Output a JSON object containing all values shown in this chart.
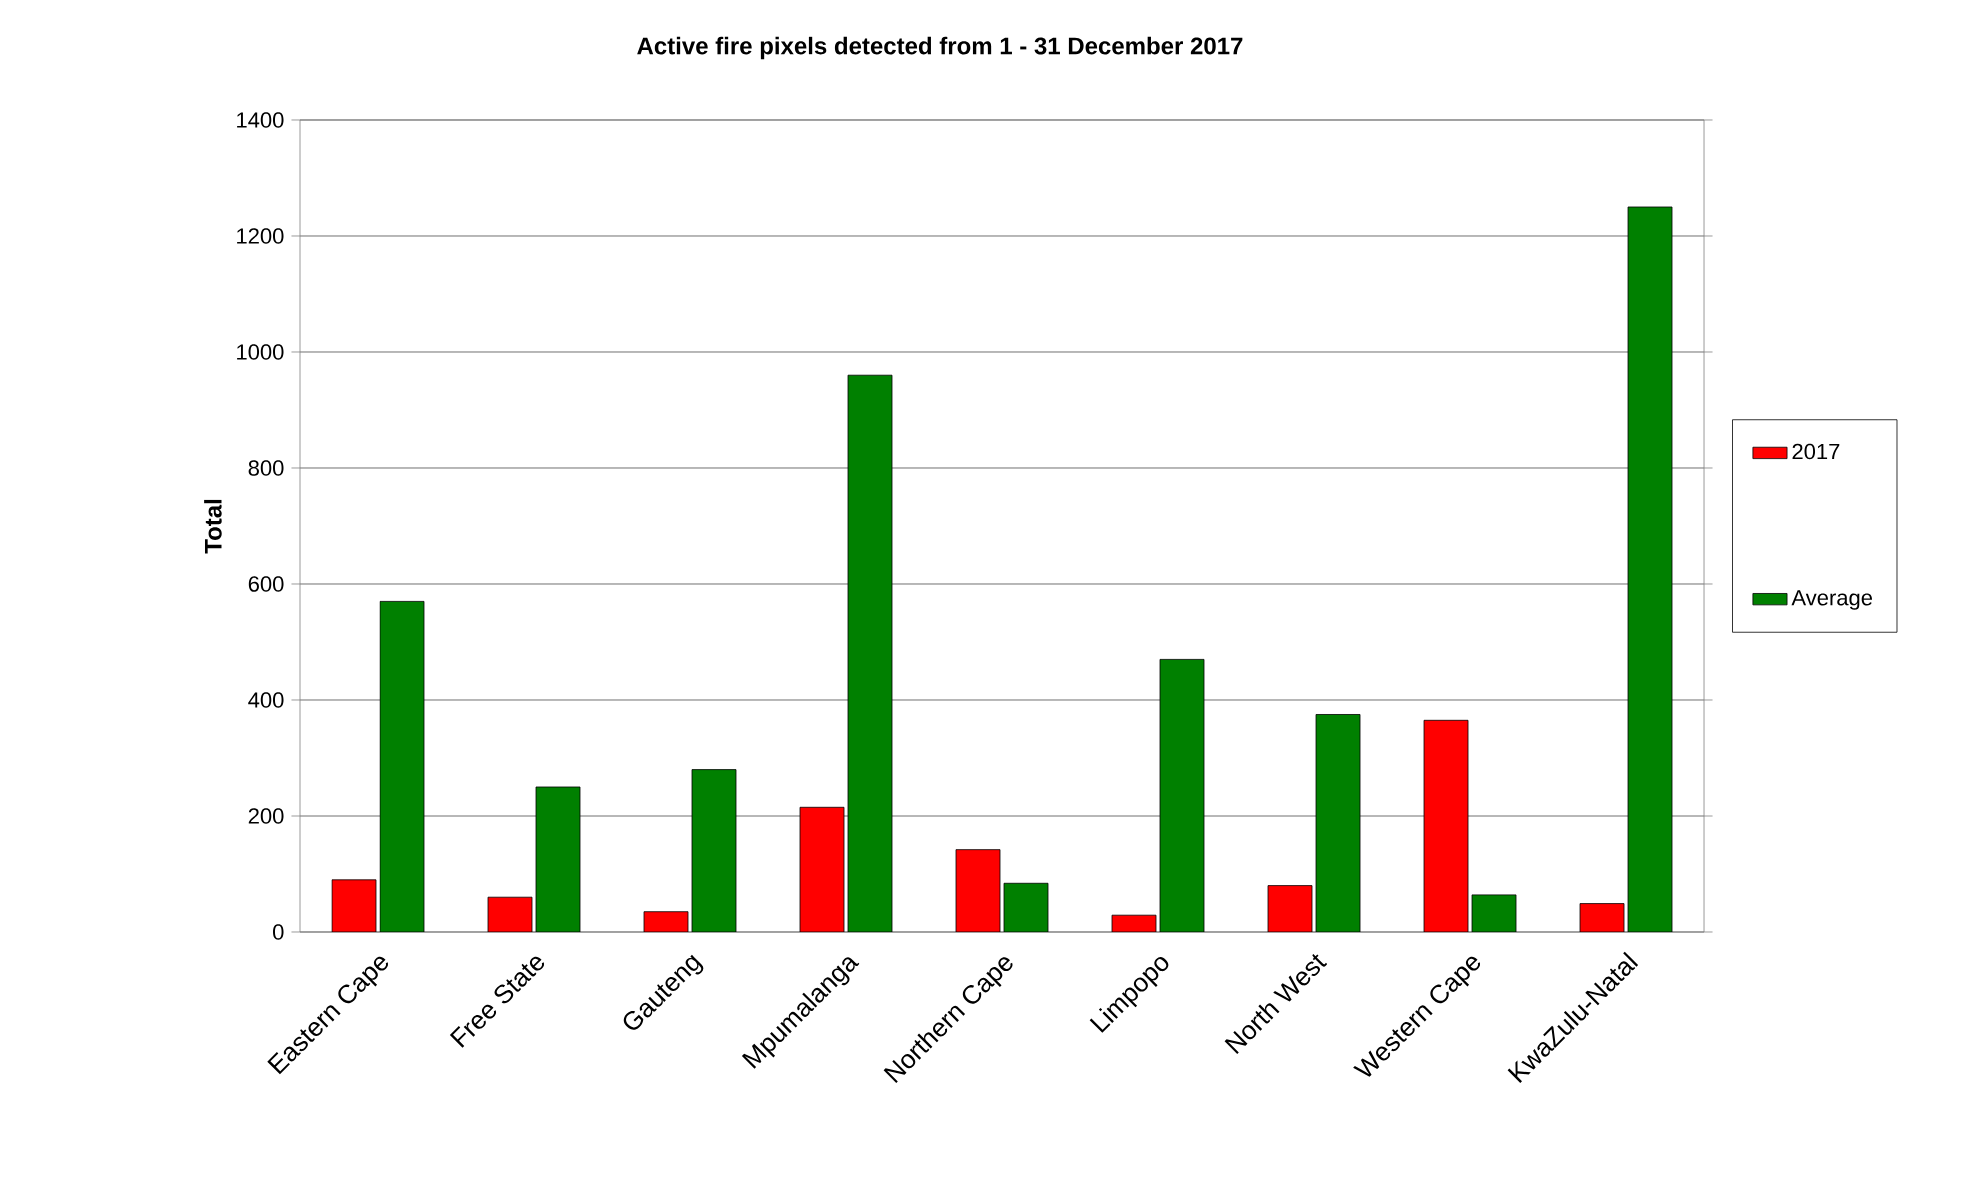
{
  "chart_data": {
    "type": "bar",
    "title": "Active fire pixels detected from 1 - 31 December 2017",
    "ylabel": "Total",
    "categories": [
      "Eastern Cape",
      "Free State",
      "Gauteng",
      "Mpumalanga",
      "Northern Cape",
      "Limpopo",
      "North West",
      "Western Cape",
      "KwaZulu-Natal"
    ],
    "series": [
      {
        "name": "2017",
        "color": "#ff0000",
        "values": [
          90,
          60,
          35,
          215,
          142,
          29,
          80,
          365,
          49
        ]
      },
      {
        "name": "Average",
        "color": "#008000",
        "values": [
          570,
          250,
          280,
          960,
          84,
          470,
          375,
          64,
          1250
        ]
      }
    ],
    "ylim": [
      0,
      1400
    ],
    "yticks": [
      0,
      200,
      400,
      600,
      800,
      1000,
      1200,
      1400
    ],
    "grid": "y",
    "legend": "right"
  }
}
